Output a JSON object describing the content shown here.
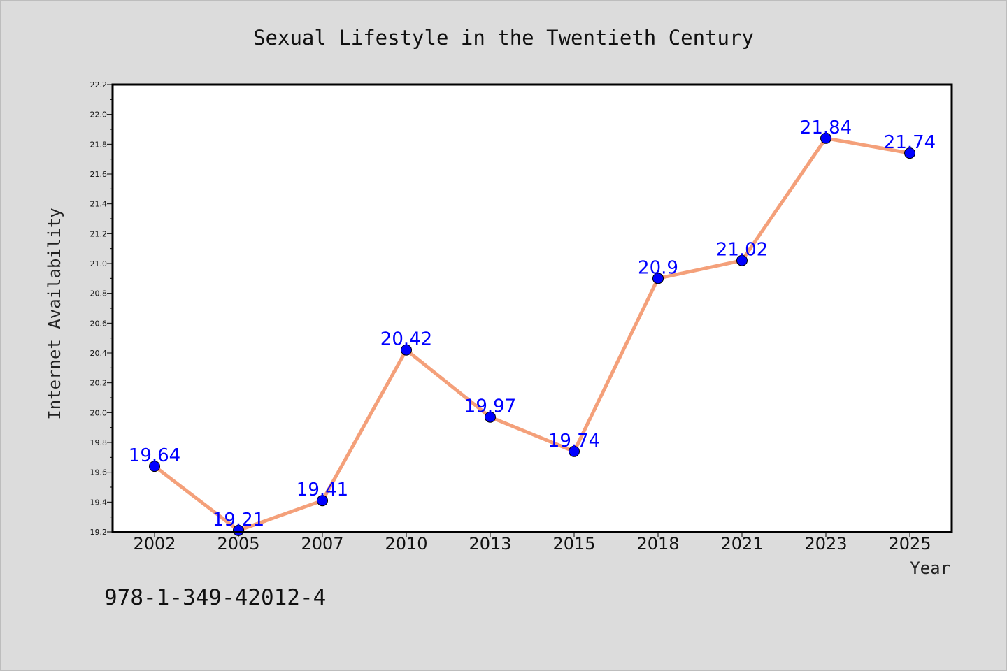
{
  "chart_data": {
    "type": "line",
    "title": "Sexual Lifestyle in the Twentieth Century",
    "xlabel": "Year",
    "ylabel": "Internet Availability",
    "categories": [
      "2002",
      "2005",
      "2007",
      "2010",
      "2013",
      "2015",
      "2018",
      "2021",
      "2023",
      "2025"
    ],
    "series": [
      {
        "values": [
          19.64,
          19.21,
          19.41,
          20.42,
          19.97,
          19.74,
          20.9,
          21.02,
          21.84,
          21.74
        ],
        "labels": [
          "19.64",
          "19.21",
          "19.41",
          "20.42",
          "19.97",
          "19.74",
          "20.9",
          "21.02",
          "21.84",
          "21.74"
        ],
        "line_color": "#f4a07a",
        "marker_color": "#0000ff",
        "label_color": "#0000ff"
      }
    ],
    "ylim": [
      19.2,
      22.2
    ],
    "yticks": [
      "19.2",
      "19.4",
      "19.6",
      "19.8",
      "20.0",
      "20.2",
      "20.4",
      "20.6",
      "20.8",
      "21.0",
      "21.2",
      "21.4",
      "21.6",
      "21.8",
      "22.0",
      "22.2"
    ],
    "grid": false,
    "legend": "none"
  },
  "footer": {
    "isbn": "978-1-349-42012-4"
  },
  "colors": {
    "background": "#dcdcdc",
    "plot_area": "#ffffff",
    "axis": "#000000"
  }
}
